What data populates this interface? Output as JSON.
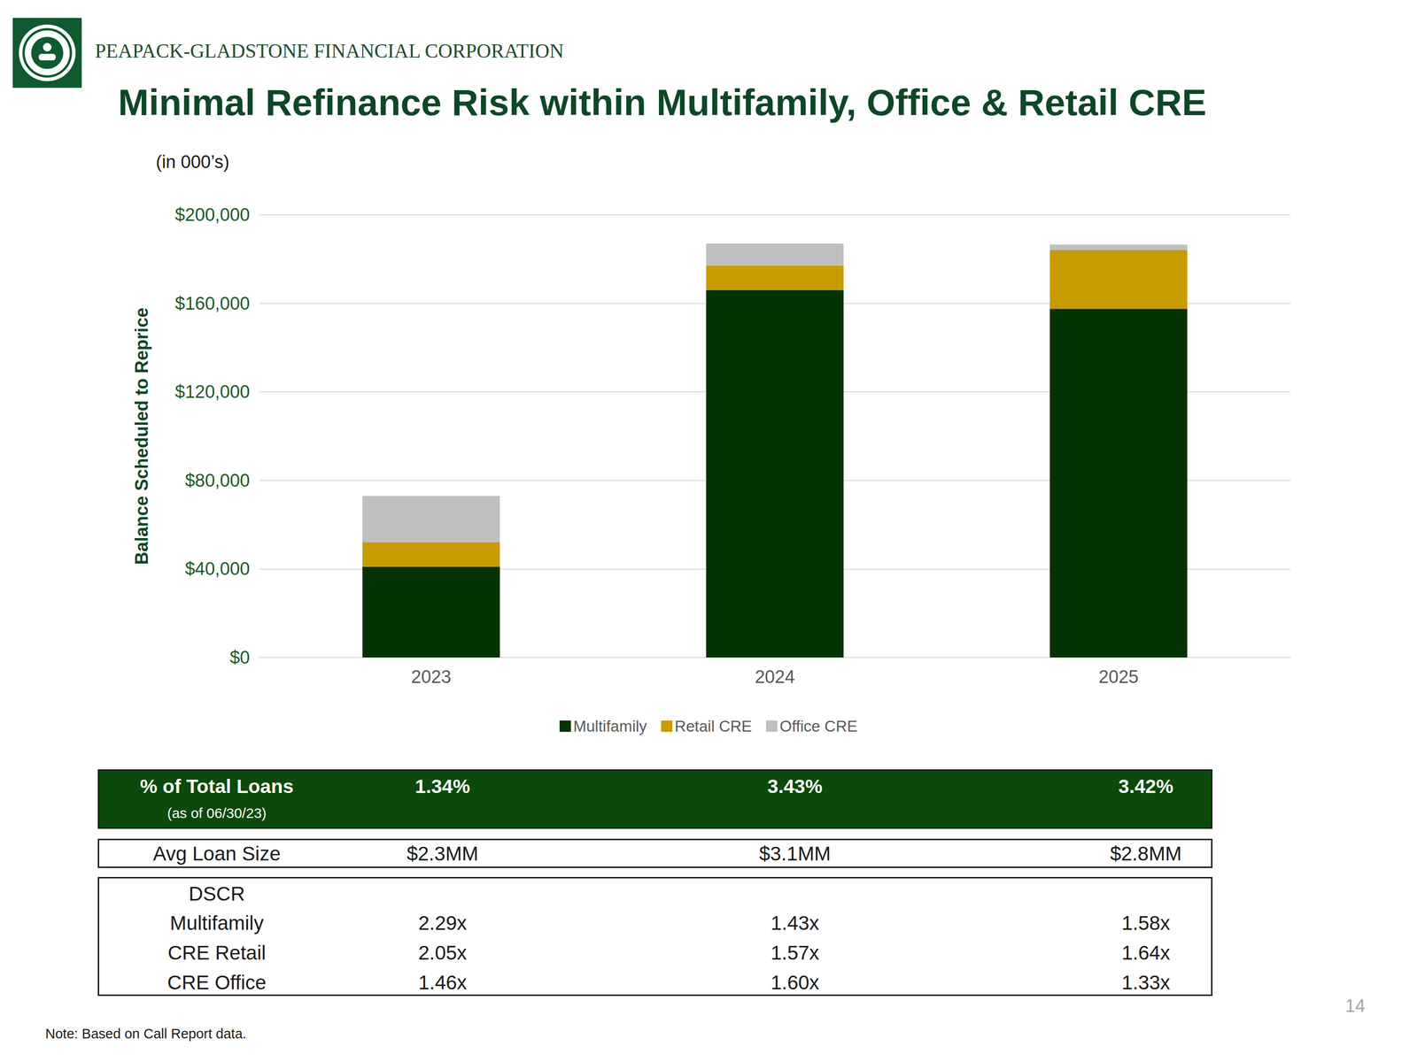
{
  "header": {
    "company": "PEAPACK-GLADSTONE FINANCIAL CORPORATION"
  },
  "chart_data": {
    "type": "bar",
    "title": "Minimal Refinance Risk within Multifamily, Office & Retail CRE",
    "subtitle": "(in 000’s)",
    "y_label": "Balance Scheduled to Reprice",
    "categories": [
      "2023",
      "2024",
      "2025"
    ],
    "series": [
      {
        "name": "Multifamily",
        "color": "#033203",
        "values": [
          41000,
          166000,
          157500
        ]
      },
      {
        "name": "Retail CRE",
        "color": "#c89b00",
        "values": [
          11000,
          11000,
          26500
        ]
      },
      {
        "name": "Office CRE",
        "color": "#bfbfbf",
        "values": [
          21000,
          10000,
          2500
        ]
      }
    ],
    "stacked": true,
    "ylim": [
      0,
      200000
    ],
    "yticks": [
      {
        "value": 0,
        "label": "$0"
      },
      {
        "value": 40000,
        "label": "$40,000"
      },
      {
        "value": 80000,
        "label": "$80,000"
      },
      {
        "value": 120000,
        "label": "$120,000"
      },
      {
        "value": 160000,
        "label": "$160,000"
      },
      {
        "value": 200000,
        "label": "$200,000"
      }
    ],
    "grid": true,
    "legend": "bottom"
  },
  "table": {
    "header_row": {
      "label": "% of Total Loans",
      "sublabel": "(as of 06/30/23)",
      "values": [
        "1.34%",
        "3.43%",
        "3.42%"
      ]
    },
    "avg_loan_row": {
      "label": "Avg Loan Size",
      "values": [
        "$2.3MM",
        "$3.1MM",
        "$2.8MM"
      ]
    },
    "dscr": {
      "title": "DSCR",
      "rows": [
        {
          "label": "Multifamily",
          "values": [
            "2.29x",
            "1.43x",
            "1.58x"
          ]
        },
        {
          "label": "CRE Retail",
          "values": [
            "2.05x",
            "1.57x",
            "1.64x"
          ]
        },
        {
          "label": "CRE Office",
          "values": [
            "1.46x",
            "1.60x",
            "1.33x"
          ]
        }
      ]
    }
  },
  "footer": {
    "note": "Note:  Based on Call Report data.",
    "page": "14"
  }
}
